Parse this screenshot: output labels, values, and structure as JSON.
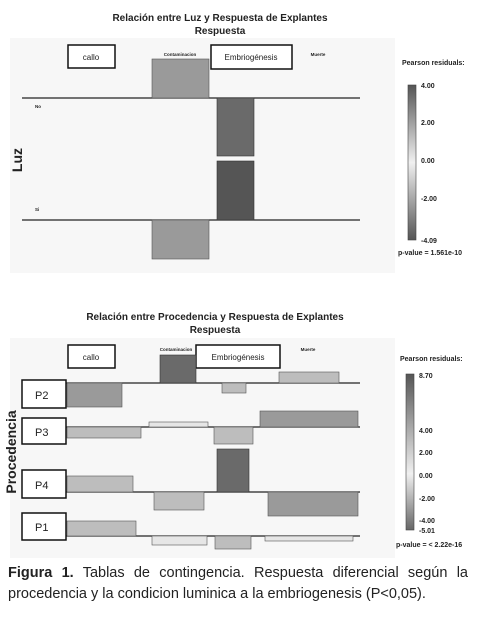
{
  "figures": [
    {
      "title": "Relación entre Luz y Respuesta de Explantes",
      "subtitle": "Respuesta",
      "row_variable": "Luz",
      "columns": [
        "callo",
        "Contaminacion",
        "Embriogénesis",
        "Muerte"
      ],
      "rows": [
        "No",
        "Si"
      ],
      "legend": {
        "title": "Pearson residuals:",
        "ticks": [
          "4.00",
          "2.00",
          "0.00",
          "-2.00",
          "-4.09"
        ],
        "p_value": "p-value = 1.561e-10"
      }
    },
    {
      "title": "Relación entre Procedencia y Respuesta de Explantes",
      "subtitle": "Respuesta",
      "row_variable": "Procedencia",
      "columns": [
        "callo",
        "Contaminacion",
        "Embriogénesis",
        "Muerte"
      ],
      "rows": [
        "P2",
        "P3",
        "P4",
        "P1"
      ],
      "legend": {
        "title": "Pearson residuals:",
        "ticks": [
          "8.70",
          "4.00",
          "2.00",
          "0.00",
          "-2.00",
          "-4.00",
          "-5.01"
        ],
        "p_value": "p-value = < 2.22e-16"
      }
    }
  ],
  "caption": {
    "label": "Figura 1.",
    "text": "Tablas de contingencia. Respuesta diferencial según la procedencia y la condicion luminica a la embriogenesis (P<0,05)."
  }
}
